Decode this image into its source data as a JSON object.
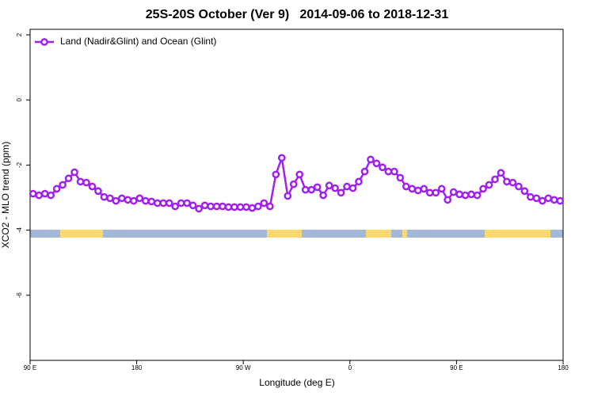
{
  "chart_data": {
    "type": "line",
    "title": "25S-20S October (Ver 9)   2014-09-06 to 2018-12-31",
    "x_label": "Longitude (deg E)",
    "y_label": "XCO2 - MLO trend (ppm)",
    "xlim": [
      90,
      540
    ],
    "xticks": [
      {
        "value": 90,
        "label": "90 E"
      },
      180,
      {
        "value": 270,
        "label": "90 W"
      },
      {
        "value": 360,
        "label": "0"
      },
      {
        "value": 450,
        "label": "90 E"
      },
      {
        "value": 540,
        "label": "180"
      }
    ],
    "ylim": [
      -8,
      2.17
    ],
    "yticks": [
      2,
      0,
      -2,
      -4,
      -6
    ],
    "grid": false,
    "legend": "top-left",
    "x": [
      92.5,
      97.5,
      102.5,
      107.5,
      112.5,
      117.5,
      122.5,
      127.5,
      132.5,
      137.5,
      142.5,
      147.5,
      152.5,
      157.5,
      162.5,
      167.5,
      172.5,
      177.5,
      182.5,
      187.5,
      192.5,
      197.5,
      202.5,
      207.5,
      212.5,
      217.5,
      222.5,
      227.5,
      232.5,
      237.5,
      242.5,
      247.5,
      252.5,
      257.5,
      262.5,
      267.5,
      272.5,
      277.5,
      282.5,
      287.5,
      292.5,
      297.5,
      302.5,
      307.5,
      312.5,
      317.5,
      322.5,
      327.5,
      332.5,
      337.5,
      342.5,
      347.5,
      352.5,
      357.5,
      362.5,
      367.5,
      372.5,
      377.5,
      382.5,
      387.5,
      392.5,
      397.5,
      402.5,
      407.5,
      412.5,
      417.5,
      422.5,
      427.5,
      432.5,
      437.5,
      442.5,
      447.5,
      452.5,
      457.5,
      462.5,
      467.5,
      472.5,
      477.5,
      482.5,
      487.5,
      492.5,
      497.5,
      502.5,
      507.5,
      512.5,
      517.5,
      522.5,
      527.5,
      532.5,
      537.5
    ],
    "series": [
      {
        "name": "Land (Nadir&Glint) and Ocean (Glint)",
        "color": "#a020f0",
        "values": [
          -2.88,
          -2.93,
          -2.88,
          -2.93,
          -2.73,
          -2.61,
          -2.41,
          -2.22,
          -2.51,
          -2.54,
          -2.66,
          -2.8,
          -2.98,
          -3.02,
          -3.1,
          -3.02,
          -3.07,
          -3.1,
          -3.02,
          -3.1,
          -3.12,
          -3.17,
          -3.17,
          -3.17,
          -3.27,
          -3.17,
          -3.17,
          -3.24,
          -3.34,
          -3.24,
          -3.27,
          -3.27,
          -3.27,
          -3.29,
          -3.29,
          -3.29,
          -3.29,
          -3.32,
          -3.27,
          -3.17,
          -3.27,
          -2.29,
          -1.78,
          -2.95,
          -2.59,
          -2.29,
          -2.76,
          -2.76,
          -2.68,
          -2.93,
          -2.63,
          -2.71,
          -2.85,
          -2.66,
          -2.71,
          -2.51,
          -2.2,
          -1.83,
          -1.95,
          -2.07,
          -2.2,
          -2.2,
          -2.39,
          -2.66,
          -2.73,
          -2.78,
          -2.73,
          -2.85,
          -2.85,
          -2.73,
          -3.07,
          -2.83,
          -2.9,
          -2.93,
          -2.9,
          -2.93,
          -2.73,
          -2.61,
          -2.44,
          -2.24,
          -2.51,
          -2.54,
          -2.66,
          -2.8,
          -2.98,
          -3.02,
          -3.1,
          -3.02,
          -3.07,
          -3.1
        ]
      }
    ]
  }
}
